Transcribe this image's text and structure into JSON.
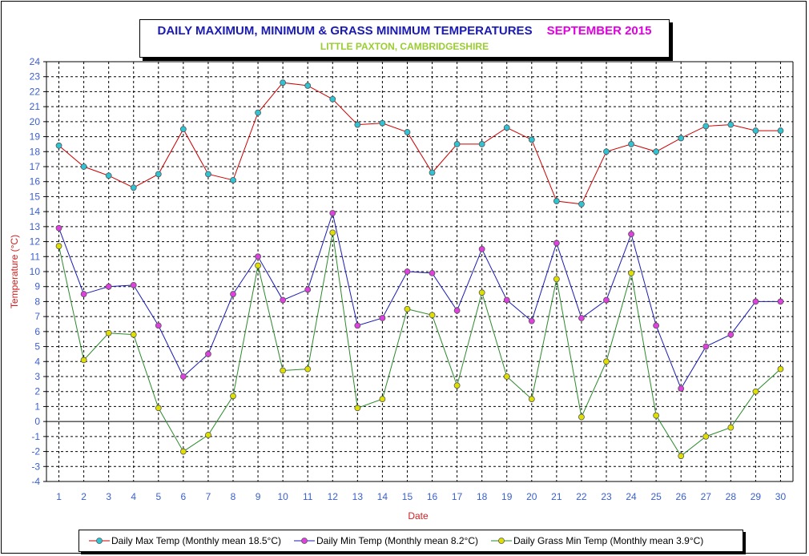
{
  "header": {
    "title": "DAILY MAXIMUM, MINIMUM & GRASS MINIMUM TEMPERATURES",
    "month": "SEPTEMBER 2015",
    "subtitle": "LITTLE PAXTON, CAMBRIDGESHIRE"
  },
  "colors": {
    "max": "#cc0000",
    "max_marker": "#2ec4d4",
    "min": "#1a1ab4",
    "min_marker": "#e040e0",
    "grass": "#2a8a2a",
    "grass_marker": "#e0e000",
    "axis_text": "#3a5fcd",
    "axis_label": "#cc2222"
  },
  "chart_data": {
    "type": "line",
    "xlabel": "Date",
    "ylabel": "Temperature (°C)",
    "xlim": [
      1,
      30
    ],
    "ylim": [
      -4,
      24
    ],
    "grid": true,
    "legend_position": "bottom",
    "x": [
      1,
      2,
      3,
      4,
      5,
      6,
      7,
      8,
      9,
      10,
      11,
      12,
      13,
      14,
      15,
      16,
      17,
      18,
      19,
      20,
      21,
      22,
      23,
      24,
      25,
      26,
      27,
      28,
      29,
      30
    ],
    "series": [
      {
        "name": "Daily Max Temp (Monthly mean 18.5°C)",
        "values": [
          18.4,
          17.0,
          16.4,
          15.6,
          16.5,
          19.5,
          16.5,
          16.1,
          20.6,
          22.6,
          22.4,
          21.5,
          19.8,
          19.9,
          19.3,
          16.6,
          18.5,
          18.5,
          19.6,
          18.8,
          14.7,
          14.5,
          18.0,
          18.5,
          18.0,
          18.9,
          19.7,
          19.8,
          19.4,
          19.4
        ]
      },
      {
        "name": "Daily Min Temp (Monthly mean 8.2°C)",
        "values": [
          12.9,
          8.5,
          9.0,
          9.1,
          6.4,
          3.0,
          4.5,
          8.5,
          11.0,
          8.1,
          8.8,
          13.9,
          6.4,
          6.9,
          10.0,
          9.9,
          7.4,
          11.5,
          8.1,
          6.7,
          11.9,
          6.9,
          8.1,
          12.5,
          6.4,
          2.2,
          5.0,
          5.8,
          8.0,
          8.0
        ]
      },
      {
        "name": "Daily Grass Min Temp (Monthly mean 3.9°C)",
        "values": [
          11.7,
          4.1,
          5.9,
          5.8,
          0.9,
          -2.0,
          -0.9,
          1.7,
          10.4,
          3.4,
          3.5,
          12.6,
          0.9,
          1.5,
          7.5,
          7.1,
          2.4,
          8.6,
          3.0,
          1.5,
          9.5,
          0.3,
          4.0,
          9.9,
          0.4,
          -2.3,
          -1.0,
          -0.4,
          2.0,
          3.5
        ]
      }
    ]
  }
}
